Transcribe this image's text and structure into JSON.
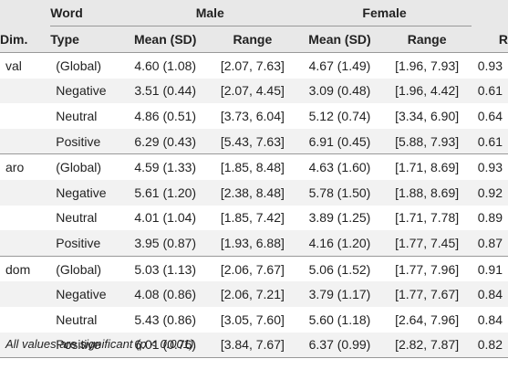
{
  "headers": {
    "word": "Word",
    "male": "Male",
    "female": "Female",
    "dim": "Dim.",
    "type": "Type",
    "mean_sd": "Mean (SD)",
    "range": "Range",
    "r": "R"
  },
  "rows": [
    {
      "dim": "val",
      "type": "(Global)",
      "male_mean": "4.60 (1.08)",
      "male_range": "[2.07, 7.63]",
      "female_mean": "4.67 (1.49)",
      "female_range": "[1.96, 7.93]",
      "r": "0.93"
    },
    {
      "dim": "",
      "type": "Negative",
      "male_mean": "3.51 (0.44)",
      "male_range": "[2.07, 4.45]",
      "female_mean": "3.09 (0.48)",
      "female_range": "[1.96, 4.42]",
      "r": "0.61"
    },
    {
      "dim": "",
      "type": "Neutral",
      "male_mean": "4.86 (0.51)",
      "male_range": "[3.73, 6.04]",
      "female_mean": "5.12 (0.74)",
      "female_range": "[3.34, 6.90]",
      "r": "0.64"
    },
    {
      "dim": "",
      "type": "Positive",
      "male_mean": "6.29 (0.43)",
      "male_range": "[5.43, 7.63]",
      "female_mean": "6.91 (0.45)",
      "female_range": "[5.88, 7.93]",
      "r": "0.61"
    },
    {
      "dim": "aro",
      "type": "(Global)",
      "male_mean": "4.59 (1.33)",
      "male_range": "[1.85, 8.48]",
      "female_mean": "4.63 (1.60)",
      "female_range": "[1.71, 8.69]",
      "r": "0.93"
    },
    {
      "dim": "",
      "type": "Negative",
      "male_mean": "5.61 (1.20)",
      "male_range": "[2.38, 8.48]",
      "female_mean": "5.78 (1.50)",
      "female_range": "[1.88, 8.69]",
      "r": "0.92"
    },
    {
      "dim": "",
      "type": "Neutral",
      "male_mean": "4.01 (1.04)",
      "male_range": "[1.85, 7.42]",
      "female_mean": "3.89 (1.25)",
      "female_range": "[1.71, 7.78]",
      "r": "0.89"
    },
    {
      "dim": "",
      "type": "Positive",
      "male_mean": "3.95 (0.87)",
      "male_range": "[1.93, 6.88]",
      "female_mean": "4.16 (1.20)",
      "female_range": "[1.77, 7.45]",
      "r": "0.87"
    },
    {
      "dim": "dom",
      "type": "(Global)",
      "male_mean": "5.03 (1.13)",
      "male_range": "[2.06, 7.67]",
      "female_mean": "5.06 (1.52)",
      "female_range": "[1.77, 7.96]",
      "r": "0.91"
    },
    {
      "dim": "",
      "type": "Negative",
      "male_mean": "4.08 (0.86)",
      "male_range": "[2.06, 7.21]",
      "female_mean": "3.79 (1.17)",
      "female_range": "[1.77, 7.67]",
      "r": "0.84"
    },
    {
      "dim": "",
      "type": "Neutral",
      "male_mean": "5.43 (0.86)",
      "male_range": "[3.05, 7.60]",
      "female_mean": "5.60 (1.18)",
      "female_range": "[2.64, 7.96]",
      "r": "0.84"
    },
    {
      "dim": "",
      "type": "Positive",
      "male_mean": "6.01 (0.76)",
      "male_range": "[3.84, 7.67]",
      "female_mean": "6.37 (0.99)",
      "female_range": "[2.82, 7.87]",
      "r": "0.82"
    }
  ],
  "note": "All values are significant (p < 0.001)."
}
